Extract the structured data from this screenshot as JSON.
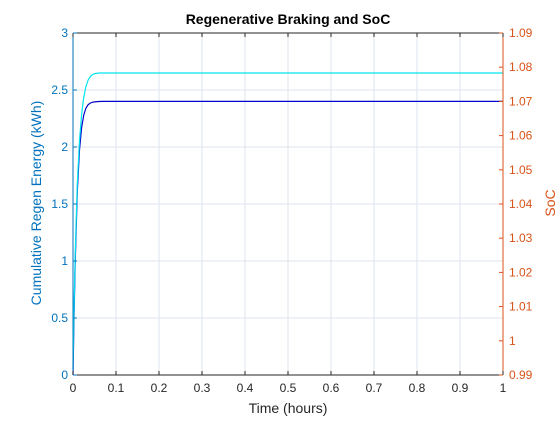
{
  "chart_data": {
    "type": "line",
    "title": "Regenerative Braking and SoC",
    "xlabel": "Time (hours)",
    "ylabel_left": "Cumulative Regen Energy (kWh)",
    "ylabel_right": "SoC",
    "xlim": [
      0,
      1
    ],
    "ylim_left": [
      0,
      3
    ],
    "ylim_right": [
      0.99,
      1.09
    ],
    "x_ticks": [
      "0",
      "0.1",
      "0.2",
      "0.3",
      "0.4",
      "0.5",
      "0.6",
      "0.7",
      "0.8",
      "0.9",
      "1"
    ],
    "y_ticks_left": [
      "0",
      "0.5",
      "1",
      "1.5",
      "2",
      "2.5",
      "3"
    ],
    "y_ticks_right": [
      "0.99",
      "1",
      "1.01",
      "1.02",
      "1.03",
      "1.04",
      "1.05",
      "1.06",
      "1.07",
      "1.08",
      "1.09"
    ],
    "grid": true,
    "colors": {
      "left_axis": "#0072BD",
      "right_axis": "#D95319",
      "energy_line": "#0000CD",
      "soc_line": "#00E5EE",
      "grid": "#DCE6EE",
      "axes": "#262626"
    },
    "series": [
      {
        "axis": "left",
        "x": [
          0,
          0.002,
          0.005,
          0.01,
          0.015,
          0.02,
          0.025,
          0.03,
          0.035,
          0.04,
          0.045,
          0.05,
          0.06,
          0.07,
          0.08,
          0.1,
          0.2,
          0.4,
          0.6,
          0.8,
          1.0
        ],
        "values": [
          0,
          0.43,
          0.97,
          1.61,
          1.97,
          2.17,
          2.28,
          2.34,
          2.37,
          2.385,
          2.392,
          2.396,
          2.399,
          2.4,
          2.4,
          2.4,
          2.4,
          2.4,
          2.4,
          2.4,
          2.4
        ]
      },
      {
        "axis": "right",
        "x": [
          0,
          0.002,
          0.005,
          0.01,
          0.015,
          0.02,
          0.025,
          0.03,
          0.035,
          0.04,
          0.045,
          0.05,
          0.06,
          0.07,
          0.08,
          0.1,
          0.2,
          0.4,
          0.6,
          0.8,
          1.0
        ],
        "values": [
          0.9917,
          1.0073,
          1.0247,
          1.0459,
          1.0584,
          1.0662,
          1.0712,
          1.0743,
          1.0762,
          1.0772,
          1.0778,
          1.0781,
          1.0783,
          1.0783,
          1.0783,
          1.0783,
          1.0783,
          1.0783,
          1.0783,
          1.0783,
          1.0783
        ]
      }
    ]
  }
}
